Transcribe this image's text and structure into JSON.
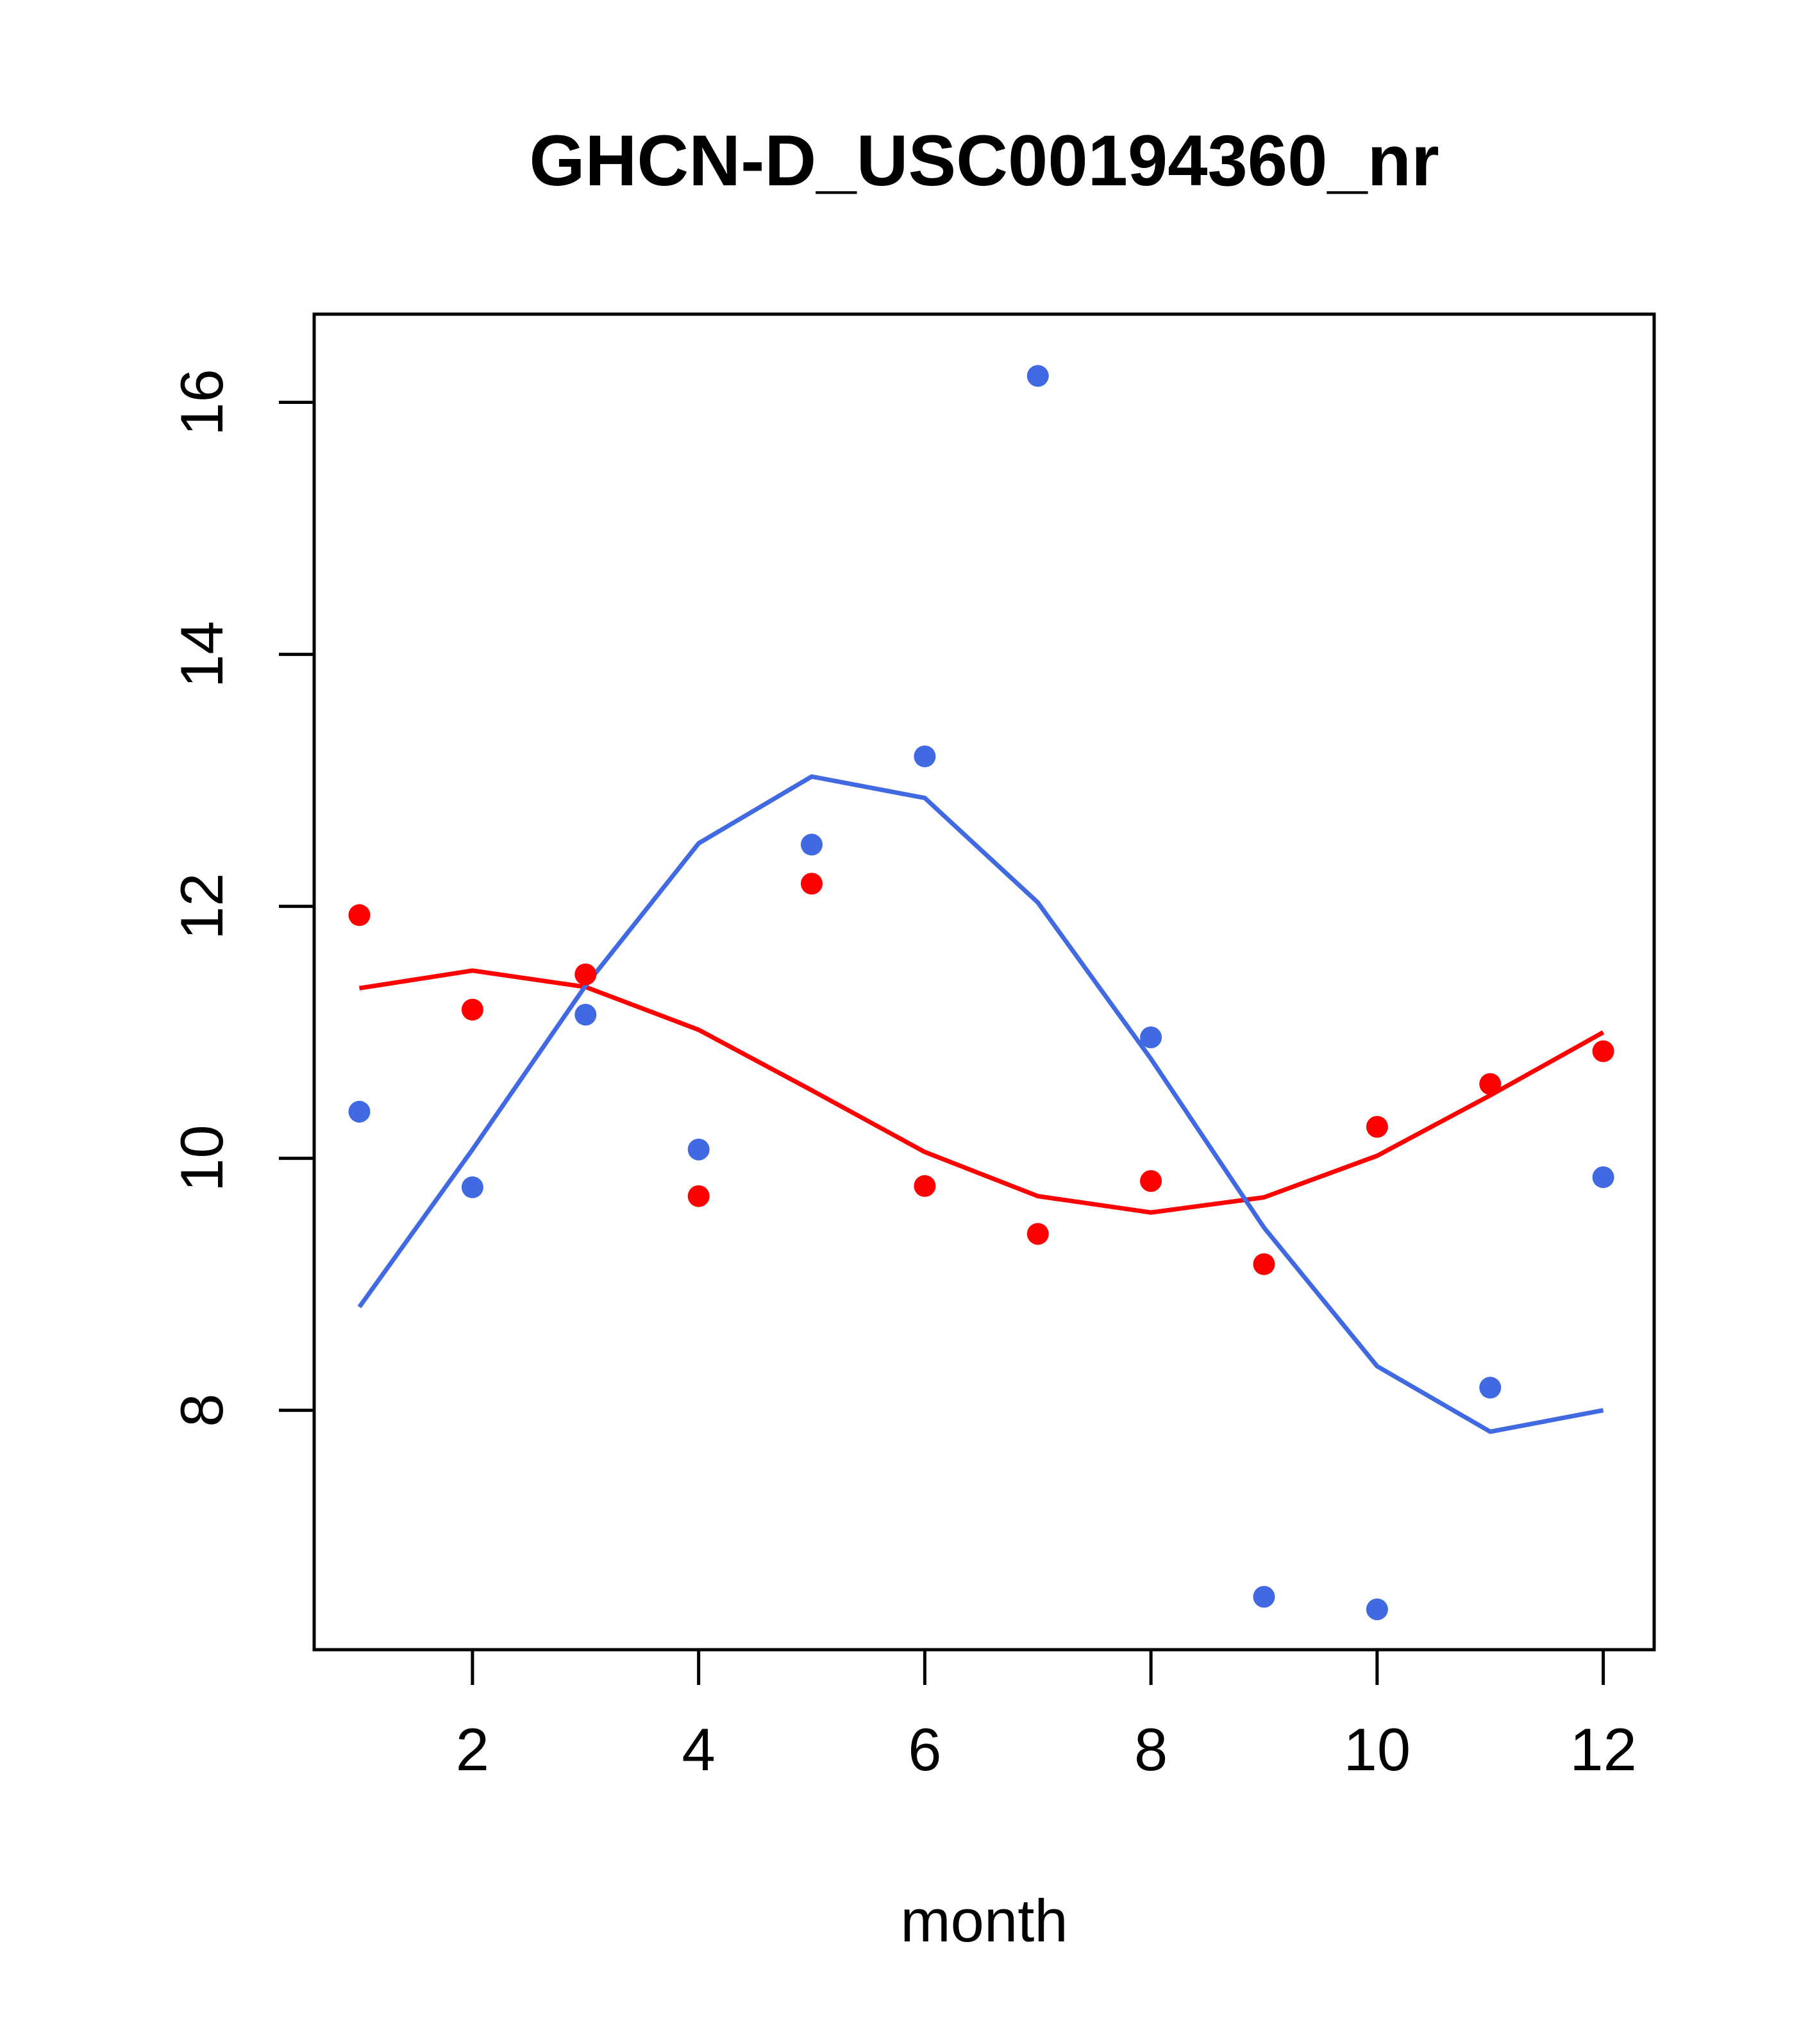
{
  "chart_data": {
    "type": "scatter",
    "title": "GHCN-D_USC00194360_nr",
    "xlabel": "month",
    "ylabel": "",
    "xlim": [
      0.6,
      12.45
    ],
    "ylim": [
      6.1,
      16.7
    ],
    "xticks": [
      2,
      4,
      6,
      8,
      10,
      12
    ],
    "yticks": [
      8,
      10,
      12,
      14,
      16
    ],
    "grid": false,
    "series": [
      {
        "kind": "points",
        "color": "#FF0000",
        "x": [
          1,
          2,
          3,
          4,
          5,
          6,
          7,
          8,
          9,
          10,
          11,
          12
        ],
        "y": [
          11.93,
          11.18,
          11.46,
          9.7,
          12.18,
          9.78,
          9.4,
          9.82,
          9.16,
          10.25,
          10.59,
          10.85
        ]
      },
      {
        "kind": "points",
        "color": "#4169E1",
        "x": [
          1,
          2,
          3,
          4,
          5,
          6,
          7,
          8,
          9,
          10,
          11,
          12
        ],
        "y": [
          10.37,
          9.77,
          11.14,
          10.07,
          12.49,
          13.19,
          16.21,
          10.96,
          6.52,
          6.42,
          8.18,
          9.85
        ]
      },
      {
        "kind": "line",
        "color": "#FF0000",
        "x": [
          1,
          2,
          3,
          4,
          5,
          6,
          7,
          8,
          9,
          10,
          11,
          12
        ],
        "y": [
          11.35,
          11.49,
          11.36,
          11.02,
          10.54,
          10.05,
          9.7,
          9.57,
          9.69,
          10.02,
          10.5,
          11.0
        ]
      },
      {
        "kind": "line",
        "color": "#4169E1",
        "x": [
          1,
          2,
          3,
          4,
          5,
          6,
          7,
          8,
          9,
          10,
          11,
          12
        ],
        "y": [
          8.82,
          10.07,
          11.37,
          12.5,
          13.03,
          12.86,
          12.03,
          10.79,
          9.45,
          8.35,
          7.83,
          8.0
        ]
      }
    ]
  }
}
